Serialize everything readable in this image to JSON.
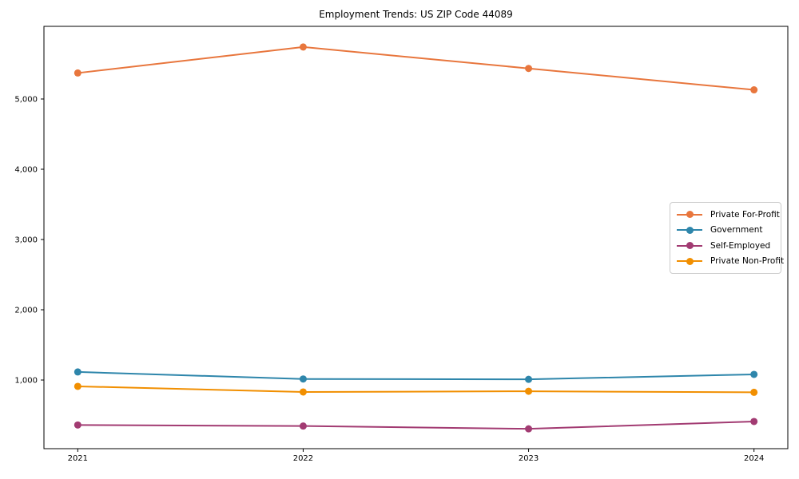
{
  "chart_data": {
    "type": "line",
    "title": "Employment Trends: US ZIP Code 44089",
    "x": [
      2021,
      2022,
      2023,
      2024
    ],
    "x_tick_labels": [
      "2021",
      "2022",
      "2023",
      "2024"
    ],
    "series": [
      {
        "name": "Private For-Profit",
        "color": "#E8763D",
        "values": [
          5370,
          5740,
          5435,
          5130
        ]
      },
      {
        "name": "Government",
        "color": "#2E86AB",
        "values": [
          1115,
          1015,
          1010,
          1080
        ]
      },
      {
        "name": "Self-Employed",
        "color": "#A23B72",
        "values": [
          360,
          345,
          305,
          410
        ]
      },
      {
        "name": "Private Non-Profit",
        "color": "#F18F01",
        "values": [
          910,
          830,
          840,
          825
        ]
      }
    ],
    "yticks": [
      {
        "value": 1000,
        "label": "1,000"
      },
      {
        "value": 2000,
        "label": "2,000"
      },
      {
        "value": 3000,
        "label": "3,000"
      },
      {
        "value": 4000,
        "label": "4,000"
      },
      {
        "value": 5000,
        "label": "5,000"
      }
    ],
    "xlim": [
      2020.85,
      2024.15
    ],
    "ylim": [
      23,
      6034
    ],
    "grid": false,
    "legend_position": "center-right",
    "marker": "circle",
    "line_width": 2,
    "marker_radius": 4.5,
    "background": "#ffffff",
    "axis_color": "#000000"
  }
}
